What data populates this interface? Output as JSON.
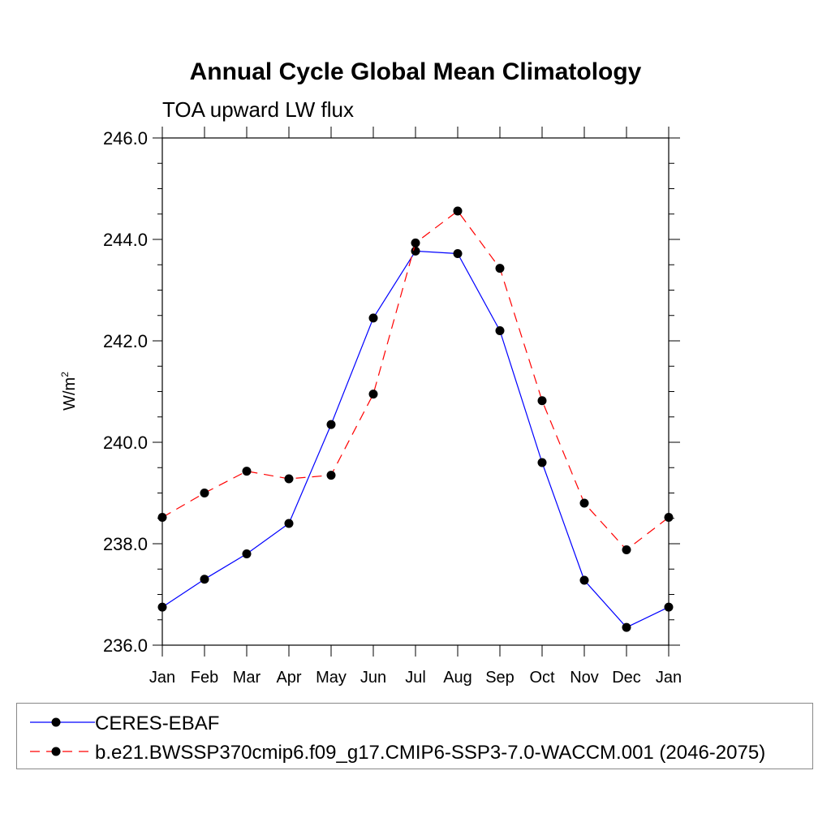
{
  "chart_data": {
    "type": "line",
    "title": "Annual Cycle Global Mean Climatology",
    "subtitle": "TOA upward LW flux",
    "ylabel": "W/m",
    "ylabel_superscript": "2",
    "xlabel": "",
    "categories": [
      "Jan",
      "Feb",
      "Mar",
      "Apr",
      "May",
      "Jun",
      "Jul",
      "Aug",
      "Sep",
      "Oct",
      "Nov",
      "Dec",
      "Jan"
    ],
    "ylim": [
      236.0,
      246.0
    ],
    "yticks": [
      "236.0",
      "238.0",
      "240.0",
      "242.0",
      "244.0",
      "246.0"
    ],
    "grid": false,
    "legend_position": "bottom",
    "series": [
      {
        "name": "CERES-EBAF",
        "color": "#0000ff",
        "dash": "solid",
        "marker": "filled-circle",
        "values": [
          236.75,
          237.3,
          237.8,
          238.4,
          240.35,
          242.45,
          243.77,
          243.72,
          242.2,
          239.6,
          237.28,
          236.35,
          236.75
        ]
      },
      {
        "name": "b.e21.BWSSP370cmip6.f09_g17.CMIP6-SSP3-7.0-WACCM.001 (2046-2075)",
        "color": "#ff0000",
        "dash": "dashed",
        "marker": "filled-circle",
        "values": [
          238.52,
          239.0,
          239.43,
          239.28,
          239.35,
          240.95,
          243.93,
          244.56,
          243.43,
          240.82,
          238.8,
          237.88,
          238.52
        ]
      }
    ]
  }
}
